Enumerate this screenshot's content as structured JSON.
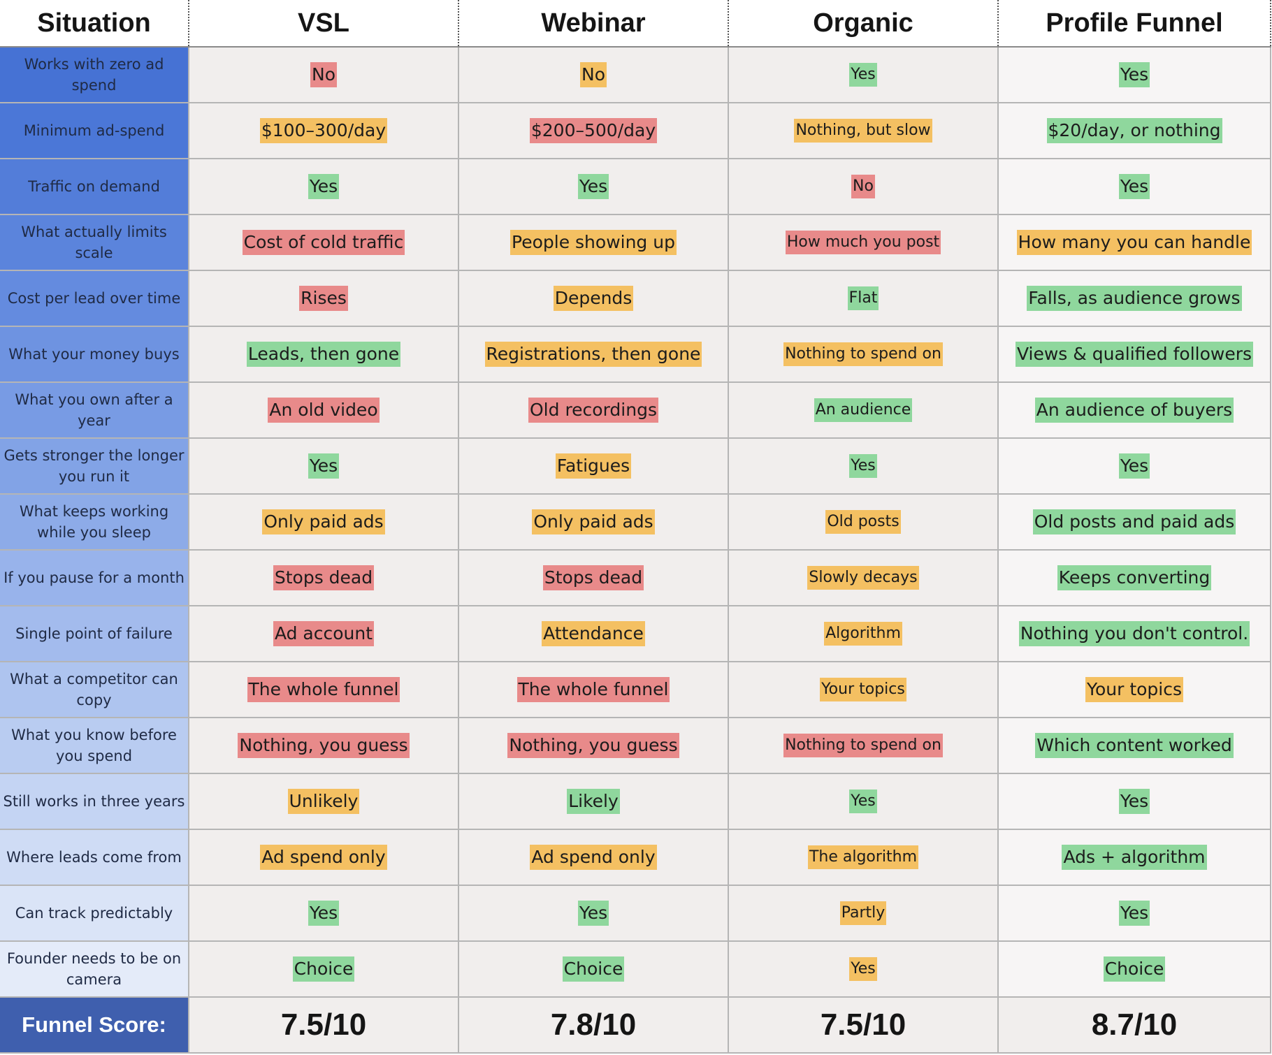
{
  "colors": {
    "red": "#e88a8a",
    "orange": "#f4c062",
    "green": "#8fd79d",
    "label_gradient_top": "#4672d4",
    "label_gradient_bottom": "#e8eef9",
    "score_label_bg": "#3f5fae"
  },
  "header": {
    "situation": "Situation",
    "vsl": "VSL",
    "webinar": "Webinar",
    "organic": "Organic",
    "profile_funnel": "Profile Funnel"
  },
  "rows": [
    {
      "label": "Works with zero ad spend",
      "label_bg": "#4672d4",
      "cells": [
        {
          "text": "No",
          "color": "red"
        },
        {
          "text": "No",
          "color": "orange"
        },
        {
          "text": "Yes",
          "color": "green"
        },
        {
          "text": "Yes",
          "color": "green"
        }
      ]
    },
    {
      "label": "Minimum ad-spend",
      "label_bg": "#4b77d7",
      "cells": [
        {
          "text": "$100–300/day",
          "color": "orange"
        },
        {
          "text": "$200–500/day",
          "color": "red"
        },
        {
          "text": "Nothing, but slow",
          "color": "orange"
        },
        {
          "text": "$20/day, or nothing",
          "color": "green"
        }
      ]
    },
    {
      "label": "Traffic on demand",
      "label_bg": "#537dd9",
      "cells": [
        {
          "text": "Yes",
          "color": "green"
        },
        {
          "text": "Yes",
          "color": "green"
        },
        {
          "text": "No",
          "color": "red"
        },
        {
          "text": "Yes",
          "color": "green"
        }
      ]
    },
    {
      "label": "What actually limits scale",
      "label_bg": "#5b84dc",
      "cells": [
        {
          "text": "Cost of cold traffic",
          "color": "red"
        },
        {
          "text": "People showing up",
          "color": "orange"
        },
        {
          "text": "How much you post",
          "color": "red"
        },
        {
          "text": "How many you can handle",
          "color": "orange"
        }
      ]
    },
    {
      "label": "Cost per lead over time",
      "label_bg": "#648bdf",
      "cells": [
        {
          "text": "Rises",
          "color": "red"
        },
        {
          "text": "Depends",
          "color": "orange"
        },
        {
          "text": "Flat",
          "color": "green"
        },
        {
          "text": "Falls, as audience grows",
          "color": "green"
        }
      ]
    },
    {
      "label": "What your money buys",
      "label_bg": "#6e93e1",
      "cells": [
        {
          "text": "Leads, then gone",
          "color": "green"
        },
        {
          "text": "Registrations, then gone",
          "color": "orange"
        },
        {
          "text": "Nothing to spend on",
          "color": "orange"
        },
        {
          "text": "Views & qualified followers",
          "color": "green"
        }
      ]
    },
    {
      "label": "What you own after a year",
      "label_bg": "#789be4",
      "cells": [
        {
          "text": "An old video",
          "color": "red"
        },
        {
          "text": "Old recordings",
          "color": "red"
        },
        {
          "text": "An audience",
          "color": "green"
        },
        {
          "text": "An audience of buyers",
          "color": "green"
        }
      ]
    },
    {
      "label": "Gets stronger the longer you run it",
      "label_bg": "#82a3e6",
      "cells": [
        {
          "text": "Yes",
          "color": "green"
        },
        {
          "text": "Fatigues",
          "color": "orange"
        },
        {
          "text": "Yes",
          "color": "green"
        },
        {
          "text": "Yes",
          "color": "green"
        }
      ]
    },
    {
      "label": "What keeps working while you sleep",
      "label_bg": "#8dabe8",
      "cells": [
        {
          "text": "Only paid ads",
          "color": "orange"
        },
        {
          "text": "Only paid ads",
          "color": "orange"
        },
        {
          "text": "Old posts",
          "color": "orange"
        },
        {
          "text": "Old posts and paid ads",
          "color": "green"
        }
      ]
    },
    {
      "label": "If you pause for a month",
      "label_bg": "#98b3eb",
      "cells": [
        {
          "text": "Stops dead",
          "color": "red"
        },
        {
          "text": "Stops dead",
          "color": "red"
        },
        {
          "text": "Slowly decays",
          "color": "orange"
        },
        {
          "text": "Keeps converting",
          "color": "green"
        }
      ]
    },
    {
      "label": "Single point of failure",
      "label_bg": "#a3bbed",
      "cells": [
        {
          "text": "Ad account",
          "color": "red"
        },
        {
          "text": "Attendance",
          "color": "orange"
        },
        {
          "text": "Algorithm",
          "color": "orange"
        },
        {
          "text": "Nothing you don't control.",
          "color": "green"
        }
      ]
    },
    {
      "label": "What a competitor can copy",
      "label_bg": "#aec4ef",
      "cells": [
        {
          "text": "The whole funnel",
          "color": "red"
        },
        {
          "text": "The whole funnel",
          "color": "red"
        },
        {
          "text": "Your topics",
          "color": "orange"
        },
        {
          "text": "Your topics",
          "color": "orange"
        }
      ]
    },
    {
      "label": "What you know before you spend",
      "label_bg": "#b9ccf1",
      "cells": [
        {
          "text": "Nothing, you guess",
          "color": "red"
        },
        {
          "text": "Nothing, you guess",
          "color": "red"
        },
        {
          "text": "Nothing to spend on",
          "color": "red"
        },
        {
          "text": "Which content worked",
          "color": "green"
        }
      ]
    },
    {
      "label": "Still works in three years",
      "label_bg": "#c4d4f3",
      "cells": [
        {
          "text": "Unlikely",
          "color": "orange"
        },
        {
          "text": "Likely",
          "color": "green"
        },
        {
          "text": "Yes",
          "color": "green"
        },
        {
          "text": "Yes",
          "color": "green"
        }
      ]
    },
    {
      "label": "Where leads come from",
      "label_bg": "#cfdcf5",
      "cells": [
        {
          "text": "Ad spend only",
          "color": "orange"
        },
        {
          "text": "Ad spend only",
          "color": "orange"
        },
        {
          "text": "The algorithm",
          "color": "orange"
        },
        {
          "text": "Ads + algorithm",
          "color": "green"
        }
      ]
    },
    {
      "label": "Can track predictably",
      "label_bg": "#dae4f7",
      "cells": [
        {
          "text": "Yes",
          "color": "green"
        },
        {
          "text": "Yes",
          "color": "green"
        },
        {
          "text": "Partly",
          "color": "orange"
        },
        {
          "text": "Yes",
          "color": "green"
        }
      ]
    },
    {
      "label": "Founder needs to be on camera",
      "label_bg": "#e4ebf9",
      "cells": [
        {
          "text": "Choice",
          "color": "green"
        },
        {
          "text": "Choice",
          "color": "green"
        },
        {
          "text": "Yes",
          "color": "orange"
        },
        {
          "text": "Choice",
          "color": "green"
        }
      ]
    }
  ],
  "footer": {
    "label": "Funnel Score:",
    "scores": [
      "7.5/10",
      "7.8/10",
      "7.5/10",
      "8.7/10"
    ]
  }
}
